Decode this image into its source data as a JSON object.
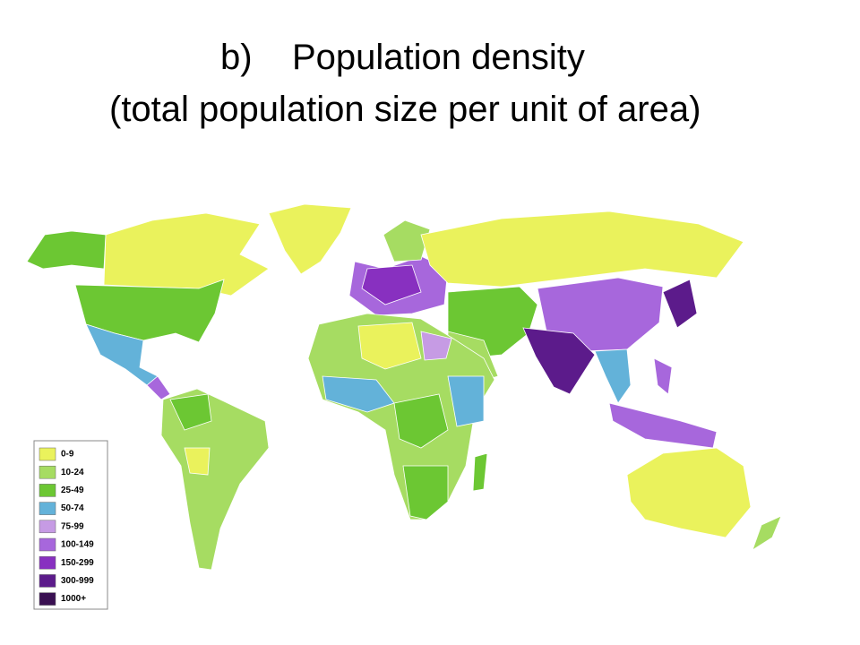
{
  "title": {
    "label": "b)",
    "text": "Population density",
    "subtitle": "(total population size per unit of area)"
  },
  "legend": {
    "items": [
      {
        "label": "0-9",
        "color": "#eaf25c"
      },
      {
        "label": "10-24",
        "color": "#a6dc62"
      },
      {
        "label": "25-49",
        "color": "#6cc733"
      },
      {
        "label": "50-74",
        "color": "#63b2d9"
      },
      {
        "label": "75-99",
        "color": "#c69be4"
      },
      {
        "label": "100-149",
        "color": "#a767dc"
      },
      {
        "label": "150-299",
        "color": "#8830c0"
      },
      {
        "label": "300-999",
        "color": "#5c1b8b"
      },
      {
        "label": "1000+",
        "color": "#3a1052"
      }
    ]
  }
}
